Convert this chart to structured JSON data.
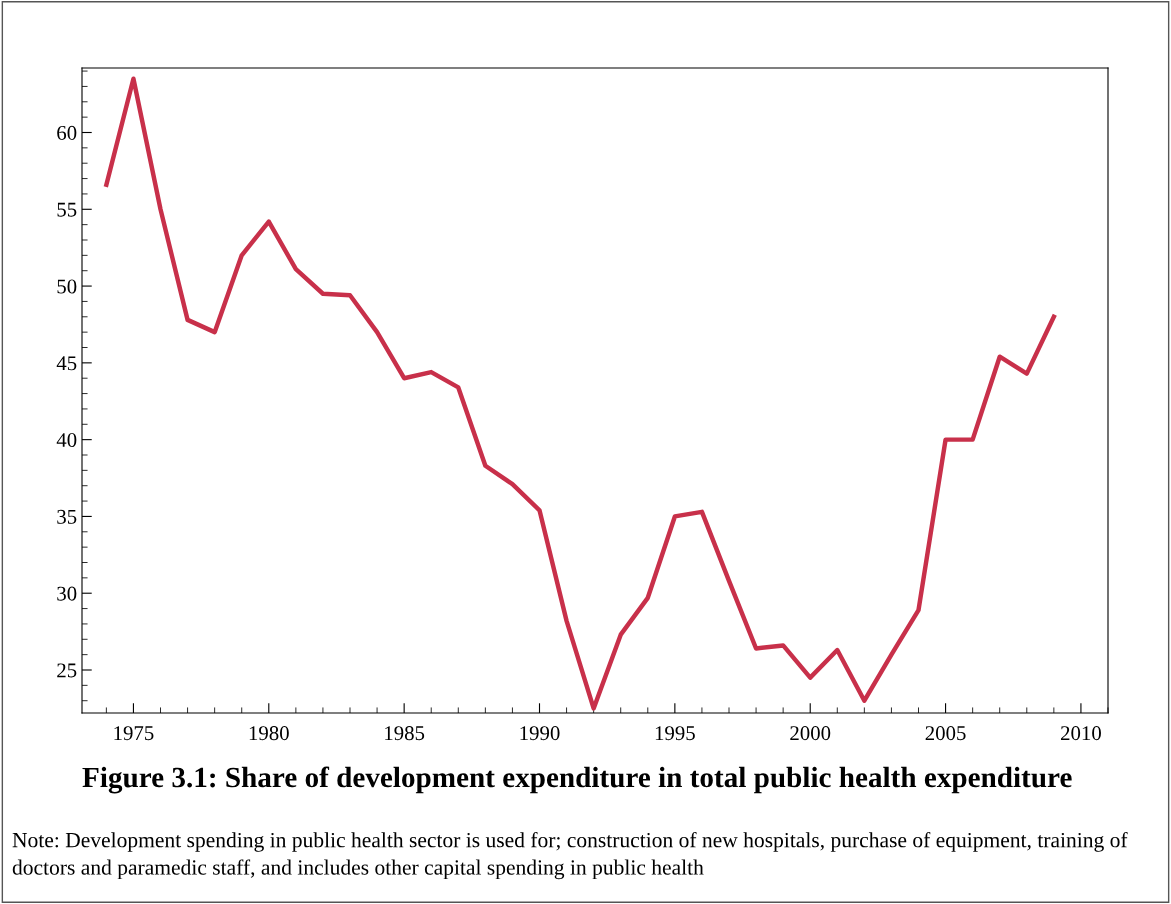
{
  "chart_data": {
    "type": "line",
    "title": "Figure 3.1: Share of development expenditure in total public health expenditure",
    "annotations": [
      "Note: Development spending in public health sector is used for; construction of new hospitals, purchase of equipment, training of doctors and paramedic staff, and includes other capital spending in public health"
    ],
    "x": [
      1974,
      1975,
      1976,
      1977,
      1978,
      1979,
      1980,
      1981,
      1982,
      1983,
      1984,
      1985,
      1986,
      1987,
      1988,
      1989,
      1990,
      1991,
      1992,
      1993,
      1994,
      1995,
      1996,
      1997,
      1998,
      1999,
      2000,
      2001,
      2002,
      2003,
      2004,
      2005,
      2006,
      2007,
      2008,
      2009
    ],
    "series": [
      {
        "color": "#c8304a",
        "values": [
          56.6,
          63.5,
          55,
          47.8,
          47.0,
          52.0,
          54.2,
          51.1,
          49.5,
          49.4,
          47.0,
          44.0,
          44.4,
          43.4,
          38.3,
          37.1,
          35.4,
          28.2,
          22.5,
          27.3,
          29.7,
          35.0,
          35.3,
          30.8,
          26.4,
          26.6,
          24.5,
          26.3,
          23.0,
          26.0,
          28.9,
          40.0,
          40.0,
          45.4,
          44.3,
          48.0
        ]
      }
    ],
    "xlim": [
      1973.1,
      2011.0
    ],
    "ylim": [
      22.2,
      64.2
    ],
    "xticks": [
      1975,
      1980,
      1985,
      1990,
      1995,
      2000,
      2005,
      2010
    ],
    "yticks": [
      25,
      30,
      35,
      40,
      45,
      50,
      55,
      60
    ],
    "grid": false,
    "legend": false,
    "marker": "none",
    "line_style": "solid"
  }
}
